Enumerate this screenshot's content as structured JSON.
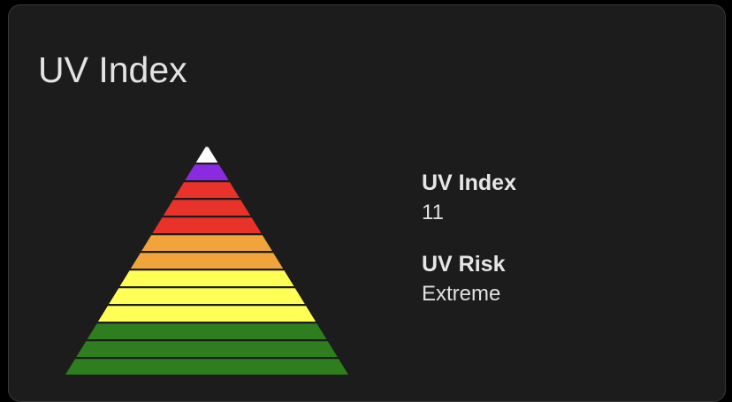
{
  "card": {
    "title": "UV Index"
  },
  "uv": {
    "index_label": "UV Index",
    "index_value": "11",
    "risk_label": "UV Risk",
    "risk_value": "Extreme"
  },
  "pyramid": {
    "current_level": 11,
    "levels": [
      {
        "level": 1,
        "color": "#2e7d1f"
      },
      {
        "level": 2,
        "color": "#2e7d1f"
      },
      {
        "level": 3,
        "color": "#2e7d1f"
      },
      {
        "level": 4,
        "color": "#ffff55"
      },
      {
        "level": 5,
        "color": "#ffff55"
      },
      {
        "level": 6,
        "color": "#ffff55"
      },
      {
        "level": 7,
        "color": "#f0a43a"
      },
      {
        "level": 8,
        "color": "#f0a43a"
      },
      {
        "level": 9,
        "color": "#e8322a"
      },
      {
        "level": 10,
        "color": "#e8322a"
      },
      {
        "level": 11,
        "color": "#e8322a"
      },
      {
        "level": 12,
        "color": "#8a2be2"
      },
      {
        "level": 13,
        "color": "#ffffff"
      }
    ]
  }
}
